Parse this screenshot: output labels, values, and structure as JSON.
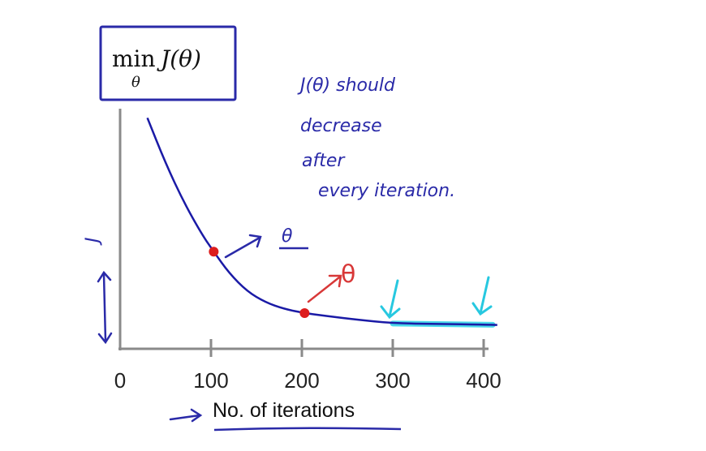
{
  "chart_data": {
    "type": "line",
    "title": "",
    "xlabel": "No. of iterations",
    "ylabel": "",
    "xlim": [
      0,
      400
    ],
    "ylim": [
      0,
      1
    ],
    "x_ticks": [
      "0",
      "100",
      "200",
      "300",
      "400"
    ],
    "grid": false,
    "series": [
      {
        "values": [
          {
            "x": 30,
            "y": 0.98
          },
          {
            "x": 50,
            "y": 0.77
          },
          {
            "x": 70,
            "y": 0.59
          },
          {
            "x": 90,
            "y": 0.44
          },
          {
            "x": 103,
            "y": 0.36
          },
          {
            "x": 120,
            "y": 0.26
          },
          {
            "x": 140,
            "y": 0.175
          },
          {
            "x": 160,
            "y": 0.125
          },
          {
            "x": 180,
            "y": 0.095
          },
          {
            "x": 203,
            "y": 0.075
          },
          {
            "x": 230,
            "y": 0.06
          },
          {
            "x": 260,
            "y": 0.045
          },
          {
            "x": 300,
            "y": 0.028
          },
          {
            "x": 350,
            "y": 0.025
          },
          {
            "x": 400,
            "y": 0.022
          },
          {
            "x": 415,
            "y": 0.02
          }
        ]
      }
    ],
    "highlighted_points": [
      {
        "x": 103,
        "y": 0.36
      },
      {
        "x": 203,
        "y": 0.075
      }
    ],
    "highlight_segment": {
      "x_start": 300,
      "x_end": 410
    },
    "colors": {
      "curve": "#1a1aa6",
      "points": "#dd1d1d",
      "highlight": "#2ad2e6",
      "axis": "#8a8a8a",
      "ink_blue": "#2a2aa8",
      "ink_red": "#d83838",
      "ink_cyan": "#27c8e0"
    }
  },
  "annotations": {
    "box_formula": {
      "op": "min",
      "sub": "θ",
      "func": "J(θ)"
    },
    "note_lines": [
      "J(θ) should",
      "decrease",
      "after",
      "every iteration."
    ],
    "theta_blue": "θ",
    "theta_red": "θ",
    "y_axis_mark": "J"
  }
}
